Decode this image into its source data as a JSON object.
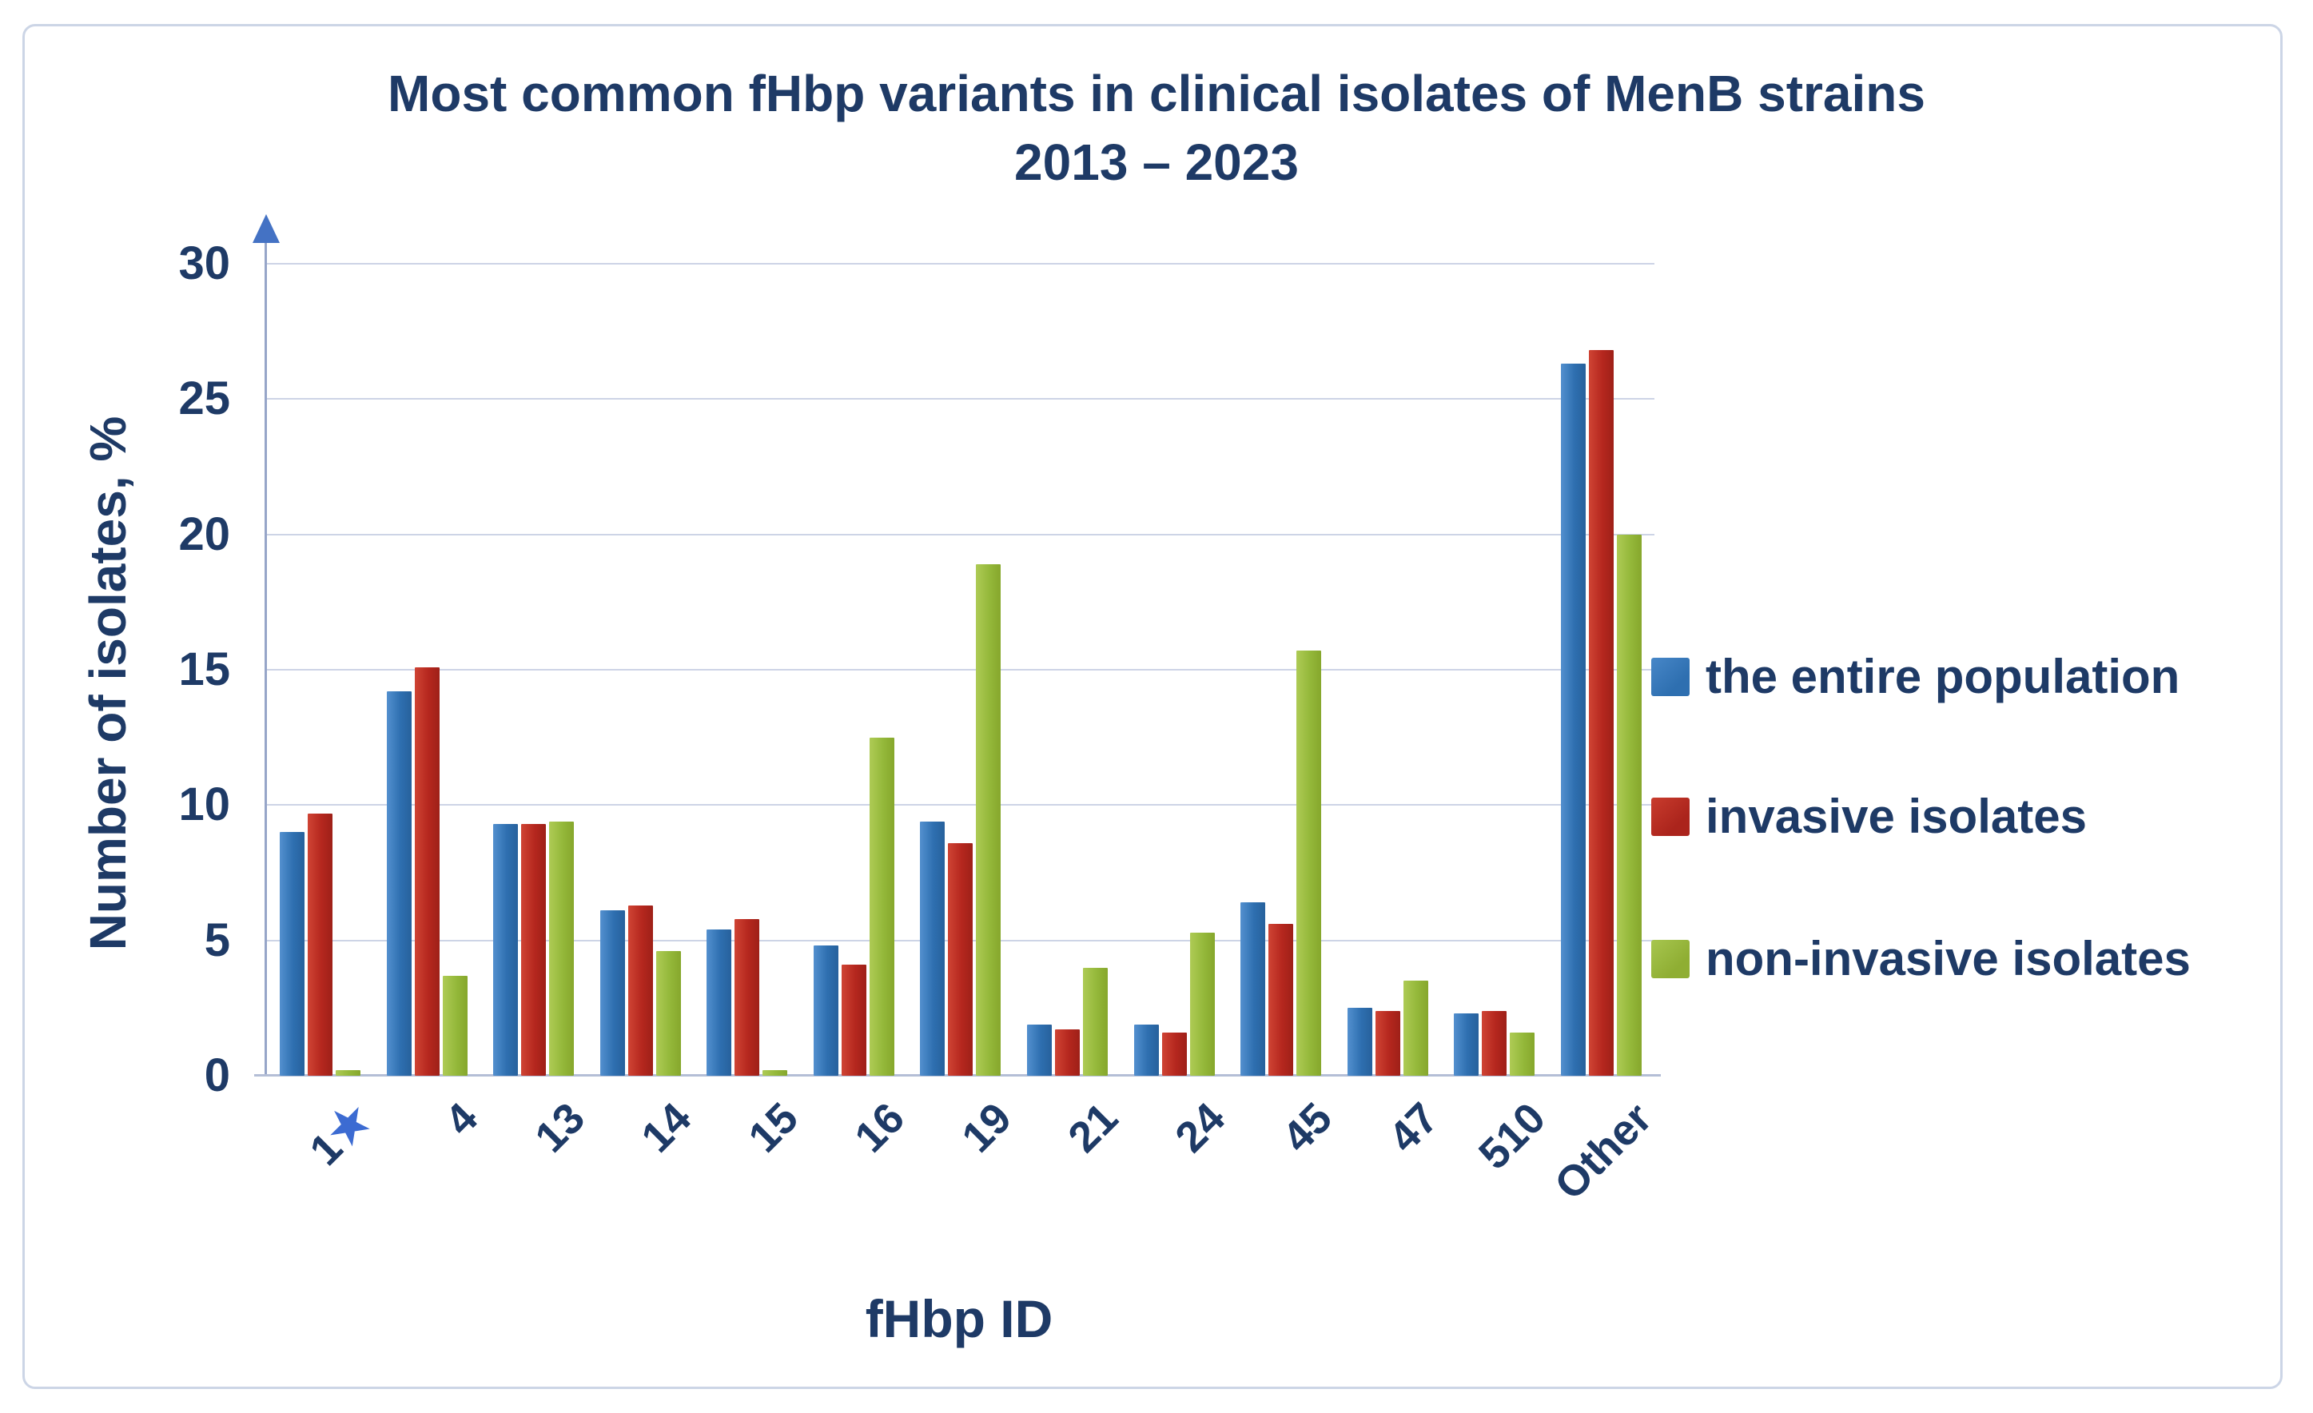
{
  "figure": {
    "title_line1": "Most common fHbp variants in clinical isolates of MenB strains",
    "title_line2": "2013 – 2023"
  },
  "y_axis": {
    "title": "Number of isolates, %",
    "ticks": [
      0,
      5,
      10,
      15,
      20,
      25,
      30
    ],
    "max": 30
  },
  "x_axis": {
    "title": "fHbp ID",
    "star_category": "1",
    "star_glyph": "★",
    "star_color": "#3c6bd2"
  },
  "legend": {
    "items": [
      "the entire population",
      "invasive isolates",
      "non-invasive isolates"
    ]
  },
  "colors": {
    "series_blue": "#2e6fb0",
    "series_red": "#b5271e",
    "series_green": "#94b83a",
    "text_navy": "#1e3a66",
    "axis_arrow_blue": "#4472c4",
    "gridline": "#cdd4e6",
    "card_border": "#ccd5e6",
    "star_blue": "#3c6bd2"
  },
  "chart_data": {
    "type": "bar",
    "title": "Most common fHbp variants in clinical isolates of MenB strains 2013 – 2023",
    "categories": [
      "1",
      "4",
      "13",
      "14",
      "15",
      "16",
      "19",
      "21",
      "24",
      "45",
      "47",
      "510",
      "Other"
    ],
    "category_markers": [
      {
        "category": "1",
        "marker": "blue star"
      }
    ],
    "series": [
      {
        "name": "the entire population",
        "color": "#2e6fb0",
        "values": [
          9.0,
          14.2,
          9.3,
          6.1,
          5.4,
          4.8,
          9.4,
          1.9,
          1.9,
          6.4,
          2.5,
          2.3,
          26.3
        ]
      },
      {
        "name": "invasive isolates",
        "color": "#b5271e",
        "values": [
          9.7,
          15.1,
          9.3,
          6.3,
          5.8,
          4.1,
          8.6,
          1.7,
          1.6,
          5.6,
          2.4,
          2.4,
          26.8
        ]
      },
      {
        "name": "non-invasive isolates",
        "color": "#94b83a",
        "values": [
          0.2,
          3.7,
          9.4,
          4.6,
          0.2,
          12.5,
          18.9,
          4.0,
          5.3,
          15.7,
          3.5,
          1.6,
          20.0
        ]
      }
    ],
    "xlabel": "fHbp ID",
    "ylabel": "Number of isolates, %",
    "ylim": [
      0,
      30
    ],
    "grid": true,
    "legend_position": "right"
  }
}
